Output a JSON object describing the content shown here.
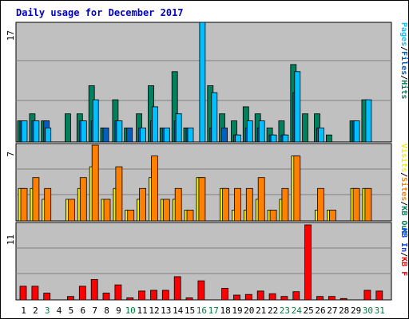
{
  "chart_data": {
    "type": "bar",
    "title": "Daily usage for December 2017",
    "categories": [
      "1",
      "2",
      "3",
      "4",
      "5",
      "6",
      "7",
      "8",
      "9",
      "10",
      "11",
      "12",
      "13",
      "14",
      "15",
      "16",
      "17",
      "18",
      "19",
      "20",
      "21",
      "22",
      "23",
      "24",
      "25",
      "26",
      "27",
      "28",
      "29",
      "30",
      "31"
    ],
    "weekend_days": [
      "3",
      "10",
      "16",
      "17",
      "23",
      "24",
      "30",
      "31"
    ],
    "panels": [
      {
        "id": "top",
        "ymax_label": "17",
        "ymax": 17,
        "axis_label_parts": [
          "Pages",
          "/",
          "Files",
          "/",
          "Hits"
        ],
        "axis_label_colors": [
          "#00c0ff",
          "#000000",
          "#0060c0",
          "#000000",
          "#00805c"
        ],
        "series": [
          {
            "name": "Hits",
            "color": "#00805c",
            "values": [
              3,
              4,
              3,
              0,
              4,
              4,
              8,
              2,
              6,
              2,
              4,
              8,
              2,
              10,
              2,
              0,
              8,
              4,
              3,
              5,
              4,
              2,
              3,
              11,
              4,
              4,
              1,
              0,
              3,
              6,
              0
            ]
          },
          {
            "name": "Files",
            "color": "#0060c0",
            "values": [
              3,
              3,
              3,
              0,
              0,
              3,
              3,
              2,
              3,
              2,
              2,
              3,
              2,
              3,
              2,
              0,
              2,
              2,
              1,
              2,
              2,
              1,
              1,
              7,
              0,
              2,
              0,
              0,
              3,
              0,
              0
            ]
          },
          {
            "name": "Pages",
            "color": "#00c0ff",
            "values": [
              3,
              3,
              2,
              0,
              0,
              3,
              6,
              0,
              3,
              0,
              2,
              5,
              2,
              4,
              2,
              17,
              7,
              0,
              1,
              3,
              3,
              1,
              1,
              10,
              0,
              2,
              0,
              0,
              3,
              6,
              0
            ]
          }
        ]
      },
      {
        "id": "middle",
        "ymax_label": "7",
        "ymax": 7,
        "axis_label_parts": [
          "Visits",
          "/",
          "Sites",
          "/",
          "KB Out"
        ],
        "axis_label_colors": [
          "#f0f000",
          "#000000",
          "#ff8000",
          "#000000",
          "#00805c"
        ],
        "series": [
          {
            "name": "Visits",
            "color": "#f0f000",
            "values": [
              3,
              3,
              2,
              0,
              2,
              3,
              5,
              2,
              3,
              1,
              2,
              4,
              2,
              2,
              1,
              4,
              0,
              3,
              1,
              1,
              2,
              1,
              2,
              6,
              0,
              1,
              1,
              0,
              3,
              3,
              0
            ]
          },
          {
            "name": "Sites",
            "color": "#ff8000",
            "values": [
              3,
              4,
              3,
              0,
              2,
              4,
              7,
              2,
              5,
              1,
              3,
              6,
              2,
              3,
              1,
              4,
              0,
              3,
              3,
              3,
              4,
              1,
              3,
              6,
              0,
              3,
              1,
              0,
              3,
              3,
              0
            ]
          }
        ]
      },
      {
        "id": "bottom",
        "ymax_label": "11",
        "ymax": 11,
        "axis_label_parts": [
          "KB In",
          "/",
          "KB F"
        ],
        "axis_label_colors": [
          "#0040ff",
          "#000000",
          "#ff0000"
        ],
        "series": [
          {
            "name": "KB F",
            "color": "#ff0000",
            "values": [
              2,
              2,
              1,
              0,
              0.5,
              2,
              3,
              1,
              2.2,
              0.3,
              1.3,
              1.4,
              1.4,
              3.4,
              0.3,
              2.8,
              0,
              1.7,
              0.7,
              0.8,
              1.3,
              0.9,
              0.5,
              1.2,
              11,
              0.5,
              0.5,
              0.2,
              0,
              1.4,
              1.3
            ]
          }
        ]
      }
    ]
  }
}
